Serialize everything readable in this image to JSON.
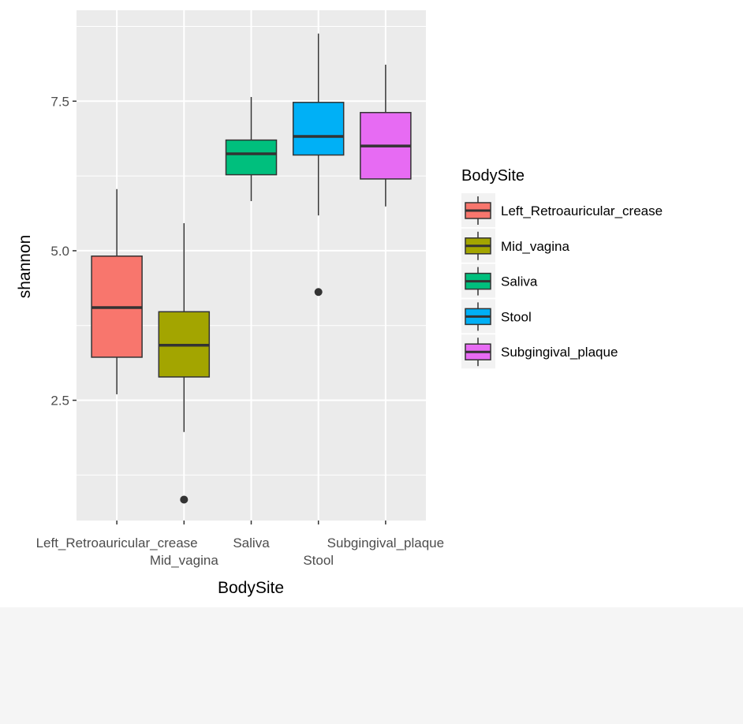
{
  "chart_data": {
    "type": "boxplot",
    "xlabel": "BodySite",
    "ylabel": "shannon",
    "ylim": [
      0.49,
      9.02
    ],
    "yticks": [
      2.5,
      5.0,
      7.5
    ],
    "ytick_labels": [
      "2.5",
      "5.0",
      "7.5"
    ],
    "grid": true,
    "legend": {
      "title": "BodySite",
      "placement": "right"
    },
    "categories": [
      "Left_Retroauricular_crease",
      "Mid_vagina",
      "Saliva",
      "Stool",
      "Subgingival_plaque"
    ],
    "series": [
      {
        "name": "Left_Retroauricular_crease",
        "color": "#F8766D",
        "whisker_low": 2.6,
        "q1": 3.22,
        "median": 4.05,
        "q3": 4.91,
        "whisker_high": 6.03,
        "outliers": []
      },
      {
        "name": "Mid_vagina",
        "color": "#A3A500",
        "whisker_low": 1.97,
        "q1": 2.89,
        "median": 3.42,
        "q3": 3.98,
        "whisker_high": 5.46,
        "outliers": [
          0.84
        ]
      },
      {
        "name": "Saliva",
        "color": "#00BF7D",
        "whisker_low": 5.83,
        "q1": 6.27,
        "median": 6.62,
        "q3": 6.85,
        "whisker_high": 7.57,
        "outliers": []
      },
      {
        "name": "Stool",
        "color": "#00B0F6",
        "whisker_low": 5.59,
        "q1": 6.6,
        "median": 6.91,
        "q3": 7.48,
        "whisker_high": 8.63,
        "outliers": [
          4.31
        ]
      },
      {
        "name": "Subgingival_plaque",
        "color": "#E76BF3",
        "whisker_low": 5.74,
        "q1": 6.2,
        "median": 6.75,
        "q3": 7.31,
        "whisker_high": 8.11,
        "outliers": []
      }
    ]
  }
}
